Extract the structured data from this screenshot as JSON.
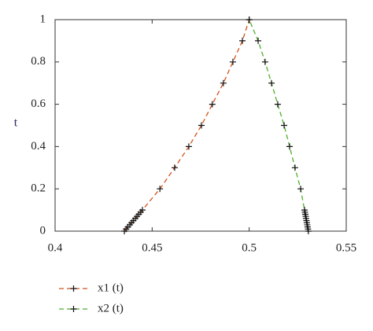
{
  "chart_data": {
    "type": "line",
    "ylabel": "t",
    "xlim": [
      0.4,
      0.55
    ],
    "xticks": [
      0.4,
      0.45,
      0.5,
      0.55
    ],
    "ylim": [
      0,
      1
    ],
    "yticks": [
      0,
      0.2,
      0.4,
      0.6,
      0.8,
      1
    ],
    "series": [
      {
        "name": "x1 (t)",
        "color": "#d4521c",
        "x": [
          0.4357,
          0.4366,
          0.4375,
          0.4385,
          0.4394,
          0.4403,
          0.4413,
          0.4422,
          0.4431,
          0.4441,
          0.445,
          0.454,
          0.4616,
          0.4689,
          0.4754,
          0.481,
          0.4867,
          0.4916,
          0.4965,
          0.5
        ],
        "values": [
          0,
          0.01,
          0.02,
          0.03,
          0.04,
          0.05,
          0.06,
          0.07,
          0.08,
          0.09,
          0.1,
          0.2,
          0.3,
          0.4,
          0.5,
          0.6,
          0.7,
          0.8,
          0.9,
          1
        ]
      },
      {
        "name": "x2 (t)",
        "color": "#4caf2a",
        "x": [
          0.5305,
          0.5303,
          0.5301,
          0.5299,
          0.5297,
          0.5295,
          0.5293,
          0.5291,
          0.5289,
          0.5287,
          0.5285,
          0.5265,
          0.5236,
          0.5208,
          0.518,
          0.5147,
          0.5115,
          0.5082,
          0.5046,
          0.5
        ],
        "values": [
          0,
          0.01,
          0.02,
          0.03,
          0.04,
          0.05,
          0.06,
          0.07,
          0.08,
          0.09,
          0.1,
          0.2,
          0.3,
          0.4,
          0.5,
          0.6,
          0.7,
          0.8,
          0.9,
          1
        ]
      }
    ]
  }
}
